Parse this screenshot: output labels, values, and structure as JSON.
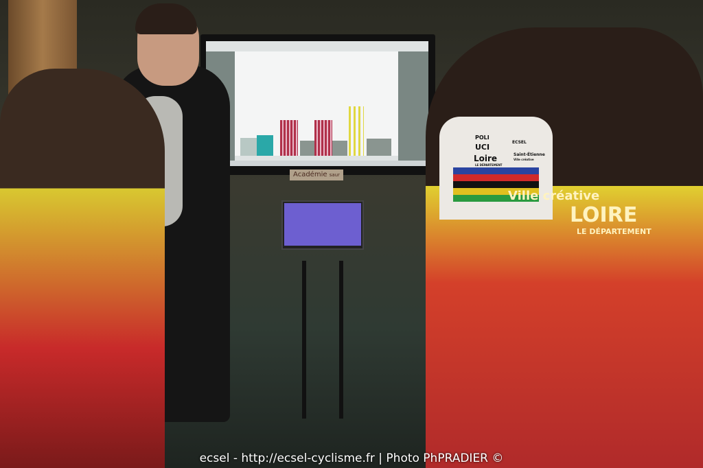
{
  "screen": {
    "sign_text": "Académie",
    "sign_brand": "saur"
  },
  "mannequin_jersey": {
    "brand": "POLI",
    "uci": "UCI",
    "sponsor": "Loire",
    "sponsor_sub": "LE DÉPARTEMENT",
    "city": "Saint-Étienne",
    "city_sub": "Ville créative",
    "club": "ECSEL"
  },
  "rider_jersey": {
    "line1": "Ville créative",
    "line2": "LOIRE",
    "line3": "LE DÉPARTEMENT"
  },
  "watermark": "ecsel - http://ecsel-cyclisme.fr | Photo PhPRADIER ©",
  "colors": {
    "interval_red": "#b0304a",
    "interval_yellow": "#e0d840",
    "teal": "#2aa8a8",
    "grey_block": "#8a9590"
  }
}
